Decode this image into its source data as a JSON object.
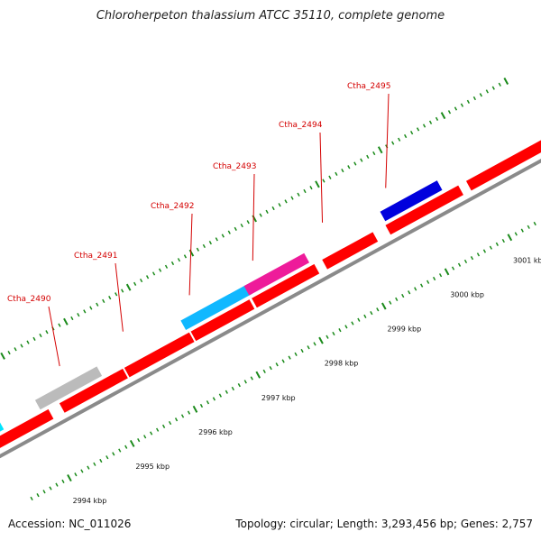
{
  "header": {
    "title": "Chloroherpeton thalassium ATCC 35110, complete genome"
  },
  "footer": {
    "accession": "Accession: NC_011026",
    "summary": "Topology: circular; Length: 3,293,456 bp; Genes: 2,757"
  },
  "colors": {
    "backbone": "#8a8a8a",
    "tick": "#1a8a1a",
    "label": "#d40000",
    "cds_red": "#ff0000",
    "cyan": "#00e5ff",
    "grey": "#bbbbbb",
    "sky": "#10b8ff",
    "magenta": "#ee1b9a",
    "blue": "#0000dd"
  },
  "scale": {
    "ticks": [
      {
        "label": "2994 kbp"
      },
      {
        "label": "2995 kbp"
      },
      {
        "label": "2996 kbp"
      },
      {
        "label": "2997 kbp"
      },
      {
        "label": "2998 kbp"
      },
      {
        "label": "2999 kbp"
      },
      {
        "label": "3000 kbp"
      },
      {
        "label": "3001 kbp"
      }
    ]
  },
  "genes": [
    {
      "label": "Ctha_2490"
    },
    {
      "label": "Ctha_2491"
    },
    {
      "label": "Ctha_2492"
    },
    {
      "label": "Ctha_2493"
    },
    {
      "label": "Ctha_2494"
    },
    {
      "label": "Ctha_2495"
    }
  ]
}
